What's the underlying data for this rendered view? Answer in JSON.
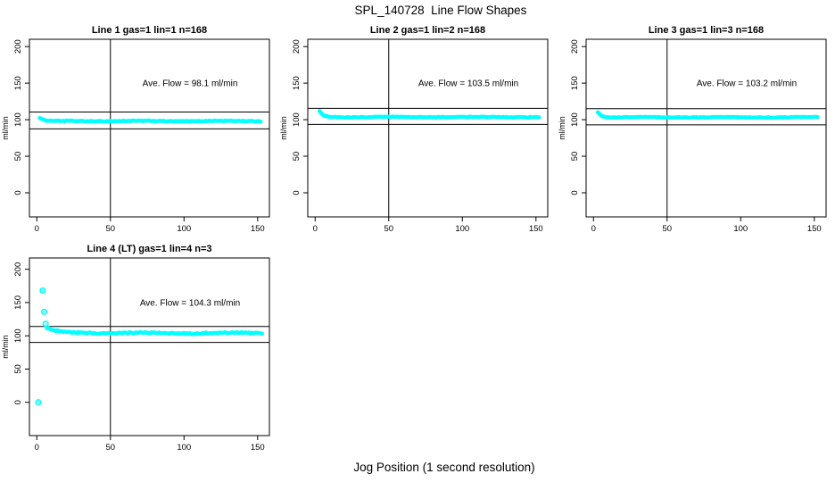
{
  "page": {
    "main_title": "SPL_140728  Line Flow Shapes",
    "x_axis_label": "Jog Position (1 second resolution)",
    "background_color": "#ffffff",
    "point_color": "#00ffff",
    "line_color": "#000000",
    "text_color": "#000000"
  },
  "chart_data": [
    {
      "type": "scatter",
      "title": "Line 1 gas=1 lin=1 n=168",
      "line": 1,
      "gas": 1,
      "lin": 1,
      "n": 168,
      "annotation": "Ave. Flow =  98.1  ml/min",
      "ave_flow_ml_min": 98.1,
      "ylabel": "ml/min",
      "x_ticks": [
        0,
        50,
        100,
        150
      ],
      "y_ticks": [
        0,
        50,
        100,
        150,
        200
      ],
      "xlim": [
        -5,
        158
      ],
      "ylim": [
        -33,
        210
      ],
      "vline_x": 50,
      "upper_line": 110.5,
      "lower_line": 87.5,
      "band": {
        "x_start": 2,
        "x_end": 152,
        "step": 1,
        "y_start": 102.5,
        "y_settle": 98.1,
        "tau": 2.5,
        "noise": 0.45,
        "wobble": 0.3
      },
      "outliers": []
    },
    {
      "type": "scatter",
      "title": "Line 2 gas=1 lin=2 n=168",
      "line": 2,
      "gas": 1,
      "lin": 2,
      "n": 168,
      "annotation": "Ave. Flow =  103.5  ml/min",
      "ave_flow_ml_min": 103.5,
      "ylabel": "ml/min",
      "x_ticks": [
        0,
        50,
        100,
        150
      ],
      "y_ticks": [
        0,
        50,
        100,
        150,
        200
      ],
      "xlim": [
        -5,
        158
      ],
      "ylim": [
        -33,
        210
      ],
      "vline_x": 50,
      "upper_line": 115.5,
      "lower_line": 93.5,
      "band": {
        "x_start": 3,
        "x_end": 152,
        "step": 1,
        "y_start": 112,
        "y_settle": 103.5,
        "tau": 2.3,
        "noise": 0.45,
        "wobble": 0.3
      },
      "outliers": []
    },
    {
      "type": "scatter",
      "title": "Line 3 gas=1 lin=3 n=168",
      "line": 3,
      "gas": 1,
      "lin": 3,
      "n": 168,
      "annotation": "Ave. Flow =  103.2  ml/min",
      "ave_flow_ml_min": 103.2,
      "ylabel": "ml/min",
      "x_ticks": [
        0,
        50,
        100,
        150
      ],
      "y_ticks": [
        0,
        50,
        100,
        150,
        200
      ],
      "xlim": [
        -5,
        158
      ],
      "ylim": [
        -33,
        210
      ],
      "vline_x": 50,
      "upper_line": 115,
      "lower_line": 93,
      "band": {
        "x_start": 3,
        "x_end": 152,
        "step": 1,
        "y_start": 110.5,
        "y_settle": 103.2,
        "tau": 2.4,
        "noise": 0.45,
        "wobble": 0.3
      },
      "outliers": []
    },
    {
      "type": "scatter",
      "title": "Line 4 (LT) gas=1 lin=4 n=3",
      "line": 4,
      "gas": 1,
      "lin": 4,
      "n": 3,
      "annotation": "Ave. Flow =  104.3  ml/min",
      "ave_flow_ml_min": 104.3,
      "ylabel": "ml/min",
      "x_ticks": [
        0,
        50,
        100,
        150
      ],
      "y_ticks": [
        0,
        50,
        100,
        150,
        200
      ],
      "xlim": [
        -5,
        158
      ],
      "ylim": [
        -50,
        217
      ],
      "vline_x": 50,
      "upper_line": 114,
      "lower_line": 90,
      "band": {
        "x_start": 7,
        "x_end": 153,
        "step": 1,
        "y_start": 111,
        "y_settle": 104.1,
        "tau": 7,
        "noise": 1.0,
        "wobble": 0.7
      },
      "outliers": [
        [
          1,
          0
        ],
        [
          4,
          168
        ],
        [
          5,
          136
        ],
        [
          6,
          118
        ]
      ]
    }
  ]
}
